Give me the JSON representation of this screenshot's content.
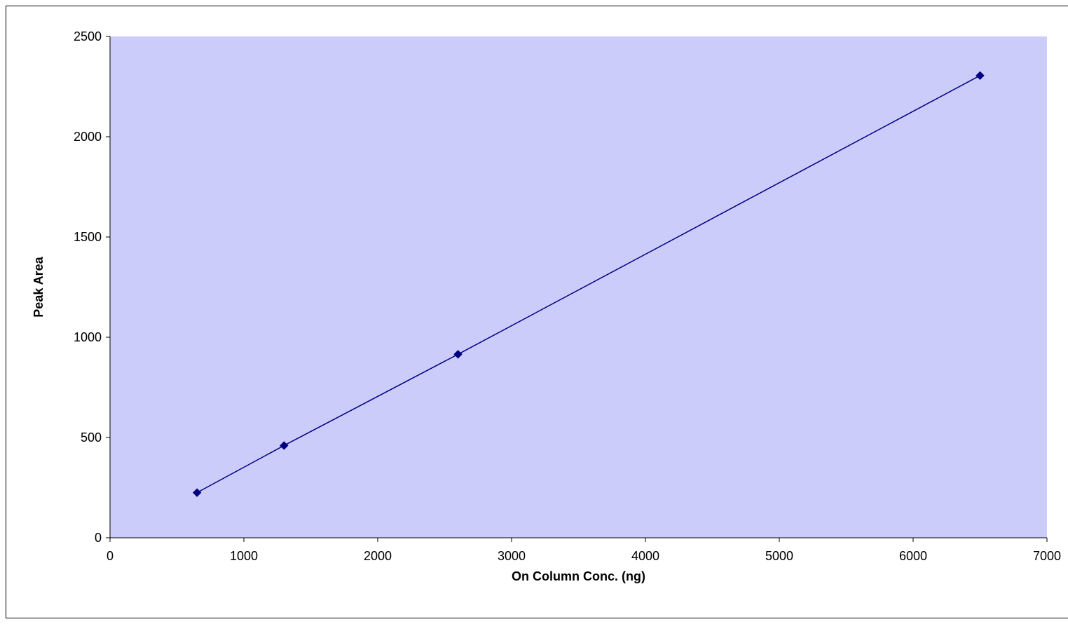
{
  "chart_data": {
    "type": "scatter",
    "title": "",
    "xlabel": "On Column Conc. (ng)",
    "ylabel": "Peak Area",
    "xlim": [
      0,
      7000
    ],
    "ylim": [
      0,
      2500
    ],
    "xticks": [
      0,
      1000,
      2000,
      3000,
      4000,
      5000,
      6000,
      7000
    ],
    "yticks": [
      0,
      500,
      1000,
      1500,
      2000,
      2500
    ],
    "grid": false,
    "legend": "none",
    "series": [
      {
        "x": [
          650,
          1300,
          2600,
          6500
        ],
        "y": [
          225,
          460,
          915,
          2305
        ],
        "marker": "diamond",
        "connected": true
      }
    ],
    "colors": {
      "plot_background": "#ccccfb",
      "series": "#000080",
      "axis": "#000000"
    }
  }
}
